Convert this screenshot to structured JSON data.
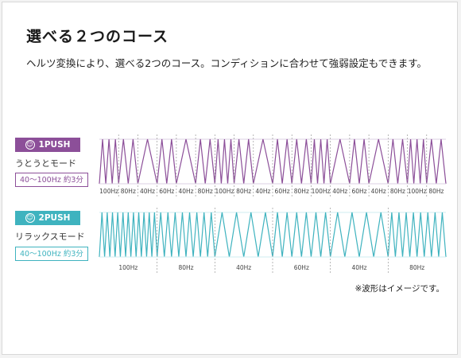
{
  "title": "選べる２つのコース",
  "description": "ヘルツ変換により、選べる2つのコース。コンディションに合わせて強弱設定もできます。",
  "note": "※波形はイメージです。",
  "colors": {
    "purple": "#8c4f99",
    "teal": "#3fb3bf",
    "purple_light": "#ddd0e3",
    "teal_light": "#cfeef1"
  },
  "courses": [
    {
      "badge": "1PUSH",
      "badge_icon": "smiley-icon",
      "mode": "うとうとモード",
      "range": "40〜100Hz 約3分",
      "segments": [
        {
          "label": "100Hz",
          "peaks": 3
        },
        {
          "label": "80Hz",
          "peaks": 2
        },
        {
          "label": "40Hz",
          "peaks": 1
        },
        {
          "label": "60Hz",
          "peaks": 2
        },
        {
          "label": "40Hz",
          "peaks": 1
        },
        {
          "label": "80Hz",
          "peaks": 2
        },
        {
          "label": "100Hz",
          "peaks": 3
        },
        {
          "label": "80Hz",
          "peaks": 2
        },
        {
          "label": "40Hz",
          "peaks": 1
        },
        {
          "label": "60Hz",
          "peaks": 2
        },
        {
          "label": "80Hz",
          "peaks": 2
        },
        {
          "label": "100Hz",
          "peaks": 3
        },
        {
          "label": "40Hz",
          "peaks": 1
        },
        {
          "label": "60Hz",
          "peaks": 2
        },
        {
          "label": "40Hz",
          "peaks": 1
        },
        {
          "label": "80Hz",
          "peaks": 2
        },
        {
          "label": "100Hz",
          "peaks": 3
        },
        {
          "label": "80Hz",
          "peaks": 2
        }
      ]
    },
    {
      "badge": "2PUSH",
      "badge_icon": "smiley-icon",
      "mode": "リラックスモード",
      "range": "40〜100Hz 約3分",
      "segments": [
        {
          "label": "100Hz",
          "peaks": 11
        },
        {
          "label": "80Hz",
          "peaks": 8
        },
        {
          "label": "40Hz",
          "peaks": 4
        },
        {
          "label": "60Hz",
          "peaks": 6
        },
        {
          "label": "40Hz",
          "peaks": 4
        },
        {
          "label": "80Hz",
          "peaks": 8
        }
      ]
    }
  ]
}
